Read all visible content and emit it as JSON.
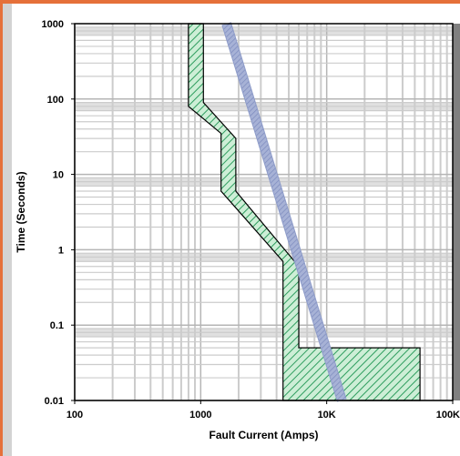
{
  "chart_data": {
    "type": "line",
    "xscale": "log",
    "yscale": "log",
    "xlabel": "Fault Current (Amps)",
    "ylabel": "Time (Seconds)",
    "xlim": [
      100,
      100000
    ],
    "ylim": [
      0.01,
      1000
    ],
    "x_ticks": [
      {
        "value": 100,
        "label": "100"
      },
      {
        "value": 1000,
        "label": "1000"
      },
      {
        "value": 10000,
        "label": "10K"
      },
      {
        "value": 100000,
        "label": "100K"
      }
    ],
    "y_ticks": [
      {
        "value": 1000,
        "label": "1000"
      },
      {
        "value": 100,
        "label": "100"
      },
      {
        "value": 10,
        "label": "10"
      },
      {
        "value": 1,
        "label": "1"
      },
      {
        "value": 0.1,
        "label": "0.1"
      },
      {
        "value": 0.01,
        "label": "0.01"
      }
    ],
    "grid": true,
    "series": [
      {
        "style": "hatched-band",
        "color": "#2e8b57",
        "fill": "#c9ebd3",
        "min_curve": [
          {
            "x": 800,
            "y": 1000
          },
          {
            "x": 800,
            "y": 80
          },
          {
            "x": 1450,
            "y": 35
          },
          {
            "x": 1450,
            "y": 6
          },
          {
            "x": 4500,
            "y": 0.7
          },
          {
            "x": 4500,
            "y": 0.01
          }
        ],
        "max_curve": [
          {
            "x": 1050,
            "y": 1000
          },
          {
            "x": 1050,
            "y": 90
          },
          {
            "x": 1900,
            "y": 30
          },
          {
            "x": 1900,
            "y": 6
          },
          {
            "x": 6000,
            "y": 0.6
          },
          {
            "x": 6000,
            "y": 0.05
          },
          {
            "x": 55000,
            "y": 0.05
          },
          {
            "x": 55000,
            "y": 0.01
          }
        ]
      },
      {
        "style": "hatched-line",
        "color": "#8e9cc9",
        "points": [
          {
            "x": 1600,
            "y": 1000
          },
          {
            "x": 13200,
            "y": 0.01
          }
        ]
      }
    ]
  },
  "colors": {
    "frame_border": "#e5703a",
    "side_bar": "#d3d3d3",
    "grid_minor": "#cccccc",
    "grid_band": "#e0e0e0",
    "axis": "#000000"
  }
}
